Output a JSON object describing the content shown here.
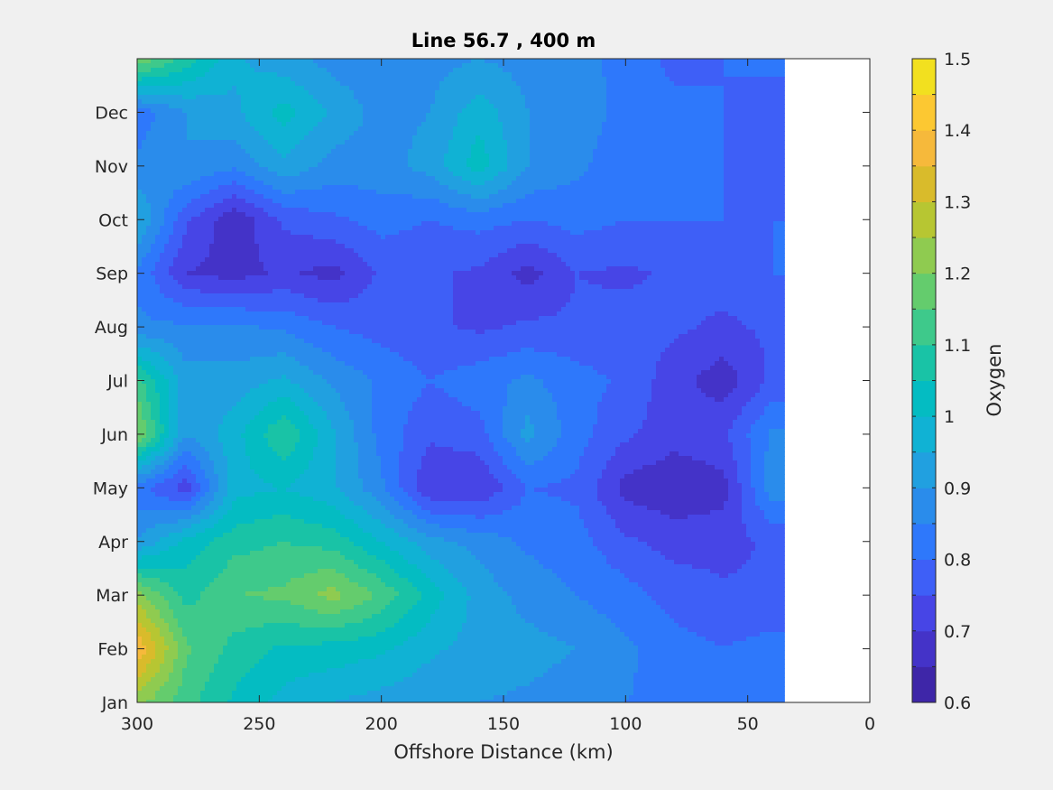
{
  "chart_data": {
    "type": "heatmap",
    "title": "Line 56.7 , 400 m",
    "xlabel": "Offshore Distance (km)",
    "ylabel": "",
    "colorbar_label": "Oxygen",
    "x_reversed": true,
    "xlim": [
      0,
      300
    ],
    "x_ticks": [
      300,
      250,
      200,
      150,
      100,
      50,
      0
    ],
    "y_ticks": [
      "Jan",
      "Feb",
      "Mar",
      "Apr",
      "May",
      "Jun",
      "Jul",
      "Aug",
      "Sep",
      "Oct",
      "Nov",
      "Dec"
    ],
    "data_x_range": [
      35,
      300
    ],
    "clim": [
      0.6,
      1.5
    ],
    "colorbar_ticks": [
      0.6,
      0.7,
      0.8,
      0.9,
      1,
      1.1,
      1.2,
      1.3,
      1.4,
      1.5
    ],
    "levels": [
      0.6,
      0.65,
      0.7,
      0.75,
      0.8,
      0.85,
      0.9,
      0.95,
      1.0,
      1.05,
      1.1,
      1.15,
      1.2,
      1.25,
      1.3,
      1.35,
      1.4,
      1.45,
      1.5
    ],
    "level_colors": [
      "#3e26a8",
      "#4433c8",
      "#4745e6",
      "#3e5ff7",
      "#2e78fb",
      "#2a8ceb",
      "#21a0e0",
      "#10b2d4",
      "#04bcc2",
      "#19c3a6",
      "#3ec98b",
      "#64cc6d",
      "#8fcb50",
      "#b7c632",
      "#d9bb2b",
      "#f6b93b",
      "#fcc832",
      "#f2e01f"
    ],
    "grid": false,
    "legend": "none",
    "x": [
      300,
      280,
      260,
      240,
      220,
      200,
      180,
      160,
      140,
      120,
      100,
      80,
      60,
      40
    ],
    "y": [
      "Jan",
      "Feb",
      "Mar",
      "Apr",
      "May",
      "Jun",
      "Jul",
      "Aug",
      "Sep",
      "Oct",
      "Nov",
      "Dec",
      "Jan"
    ],
    "z": [
      [
        1.22,
        1.12,
        1.04,
        0.98,
        0.95,
        0.93,
        0.91,
        0.9,
        0.89,
        0.87,
        0.85,
        0.84,
        0.83,
        0.82
      ],
      [
        1.4,
        1.16,
        1.08,
        1.04,
        1.03,
        1.01,
        0.96,
        0.93,
        0.92,
        0.9,
        0.86,
        0.82,
        0.8,
        0.82
      ],
      [
        1.22,
        1.08,
        1.15,
        1.16,
        1.22,
        1.14,
        1.03,
        0.93,
        0.88,
        0.85,
        0.82,
        0.78,
        0.76,
        0.76
      ],
      [
        0.9,
        1.02,
        1.08,
        1.1,
        1.08,
        1.0,
        0.92,
        0.88,
        0.84,
        0.82,
        0.76,
        0.73,
        0.73,
        0.76
      ],
      [
        0.82,
        0.72,
        0.98,
        1.0,
        0.96,
        0.86,
        0.7,
        0.7,
        0.8,
        0.79,
        0.68,
        0.66,
        0.68,
        0.88
      ],
      [
        1.22,
        0.9,
        0.98,
        1.1,
        0.96,
        0.83,
        0.76,
        0.78,
        0.92,
        0.82,
        0.76,
        0.72,
        0.74,
        0.86
      ],
      [
        1.12,
        0.92,
        0.92,
        0.96,
        0.89,
        0.84,
        0.8,
        0.83,
        0.86,
        0.82,
        0.79,
        0.72,
        0.67,
        0.76
      ],
      [
        0.86,
        0.86,
        0.86,
        0.84,
        0.8,
        0.78,
        0.76,
        0.74,
        0.76,
        0.76,
        0.77,
        0.76,
        0.74,
        0.76
      ],
      [
        0.84,
        0.7,
        0.68,
        0.71,
        0.68,
        0.76,
        0.76,
        0.74,
        0.68,
        0.75,
        0.74,
        0.76,
        0.77,
        0.8
      ],
      [
        0.96,
        0.76,
        0.66,
        0.76,
        0.79,
        0.82,
        0.8,
        0.82,
        0.8,
        0.82,
        0.8,
        0.8,
        0.8,
        0.8
      ],
      [
        0.86,
        0.9,
        0.86,
        0.94,
        0.88,
        0.88,
        0.92,
        1.03,
        0.9,
        0.86,
        0.82,
        0.81,
        0.8,
        0.78
      ],
      [
        0.82,
        0.9,
        0.94,
        1.02,
        0.94,
        0.88,
        0.9,
        0.98,
        0.9,
        0.88,
        0.83,
        0.82,
        0.8,
        0.76
      ],
      [
        1.2,
        1.08,
        0.96,
        0.92,
        0.88,
        0.86,
        0.88,
        0.9,
        0.88,
        0.86,
        0.84,
        0.78,
        0.8,
        0.82
      ]
    ]
  }
}
